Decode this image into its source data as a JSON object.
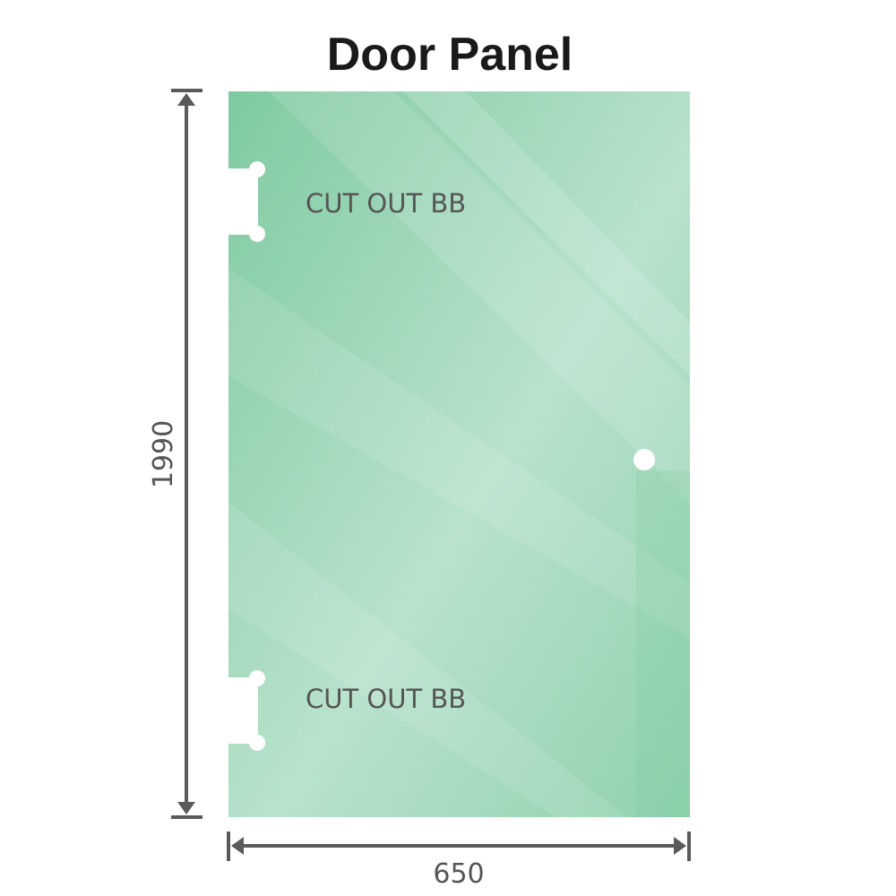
{
  "title": "Door Panel",
  "panel": {
    "cutout_top_label": "CUT OUT BB",
    "cutout_bottom_label": "CUT OUT BB",
    "glass_color": "#8ccfa8"
  },
  "dimensions": {
    "height": "1990",
    "width": "650",
    "line_color": "#5a5a5a"
  }
}
